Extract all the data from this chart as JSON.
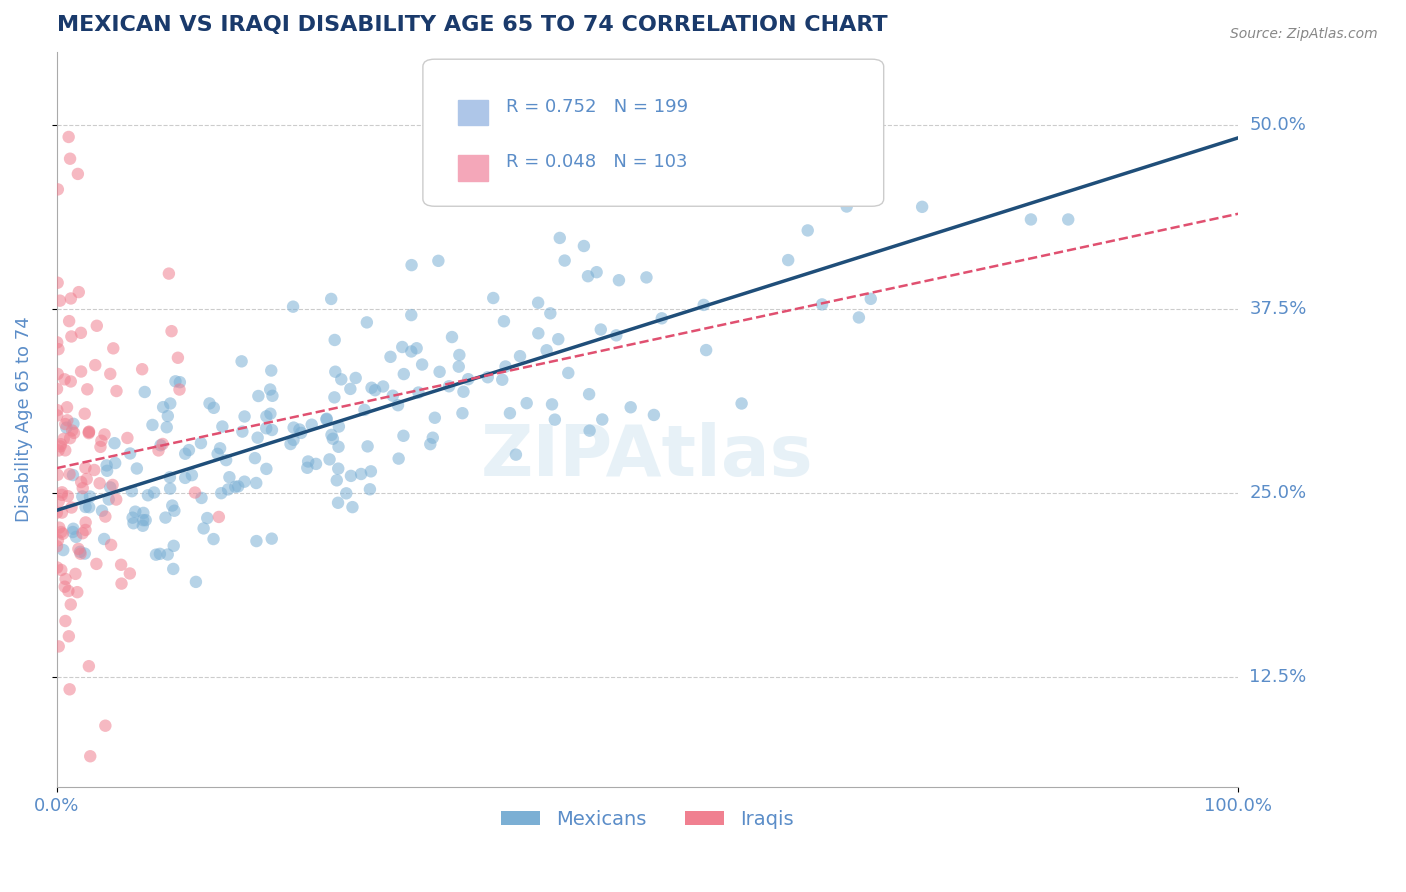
{
  "title": "MEXICAN VS IRAQI DISABILITY AGE 65 TO 74 CORRELATION CHART",
  "source": "Source: ZipAtlas.com",
  "xlabel": "",
  "ylabel": "Disability Age 65 to 74",
  "xlim": [
    0.0,
    1.0
  ],
  "ylim": [
    0.05,
    0.55
  ],
  "yticks": [
    0.125,
    0.25,
    0.375,
    0.5
  ],
  "ytick_labels": [
    "12.5%",
    "25.0%",
    "37.5%",
    "50.0%"
  ],
  "xticks": [
    0.0,
    1.0
  ],
  "xtick_labels": [
    "0.0%",
    "100.0%"
  ],
  "legend_entries": [
    {
      "label": "R = 0.752   N = 199",
      "color": "#aec6e8"
    },
    {
      "label": "R = 0.048   N = 103",
      "color": "#f4a7b9"
    }
  ],
  "mexican_R": 0.752,
  "mexican_N": 199,
  "iraqi_R": 0.048,
  "iraqi_N": 103,
  "blue_color": "#7BAFD4",
  "pink_color": "#F08090",
  "title_color": "#1a3a6b",
  "axis_color": "#5b8dc8",
  "grid_color": "#cccccc",
  "watermark": "ZIPAtlas",
  "figsize": [
    14.06,
    8.92
  ],
  "dpi": 100
}
